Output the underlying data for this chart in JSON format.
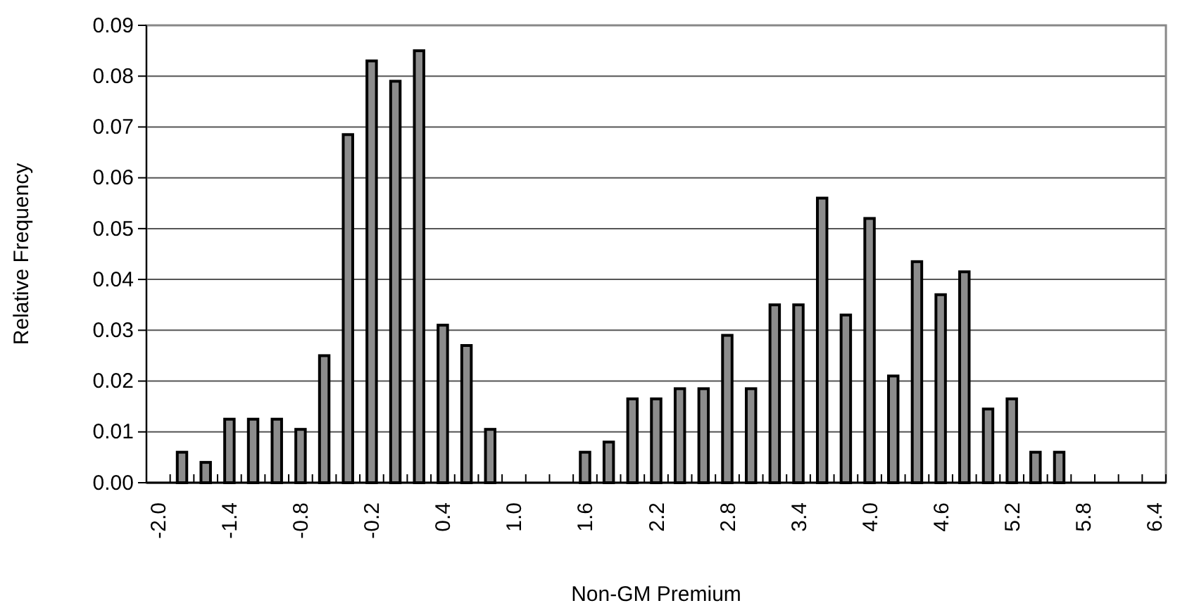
{
  "chart_data": {
    "type": "bar",
    "xlabel": "Non-GM Premium",
    "ylabel": "Relative Frequency",
    "categories": [
      "-2.0",
      null,
      null,
      "-1.4",
      null,
      null,
      "-0.8",
      null,
      null,
      "-0.2",
      null,
      null,
      "0.4",
      null,
      null,
      "1.0",
      null,
      null,
      "1.6",
      null,
      null,
      "2.2",
      null,
      null,
      "2.8",
      null,
      null,
      "3.4",
      null,
      null,
      "4.0",
      null,
      null,
      "4.6",
      null,
      null,
      "5.2",
      null,
      null,
      "5.8",
      null,
      null,
      "6.4"
    ],
    "values": [
      0,
      0.006,
      0.004,
      0.0125,
      0.0125,
      0.0125,
      0.0105,
      0.025,
      0.0685,
      0.083,
      0.079,
      0.085,
      0.031,
      0.027,
      0.0105,
      0,
      0,
      0,
      0.006,
      0.008,
      0.0165,
      0.0165,
      0.0185,
      0.0185,
      0.029,
      0.0185,
      0.035,
      0.035,
      0.056,
      0.033,
      0.052,
      0.021,
      0.0435,
      0.037,
      0.0415,
      0.0145,
      0.0165,
      0.006,
      0.006,
      0,
      0,
      0,
      0
    ],
    "color": "#8c8c8c",
    "ylim": [
      0,
      0.09
    ],
    "yticks": [
      {
        "value": 0,
        "label": "0.00"
      },
      0.01,
      0.02,
      0.03,
      0.04,
      0.05,
      0.06,
      0.07,
      0.08,
      0.09
    ],
    "grid": "y"
  }
}
